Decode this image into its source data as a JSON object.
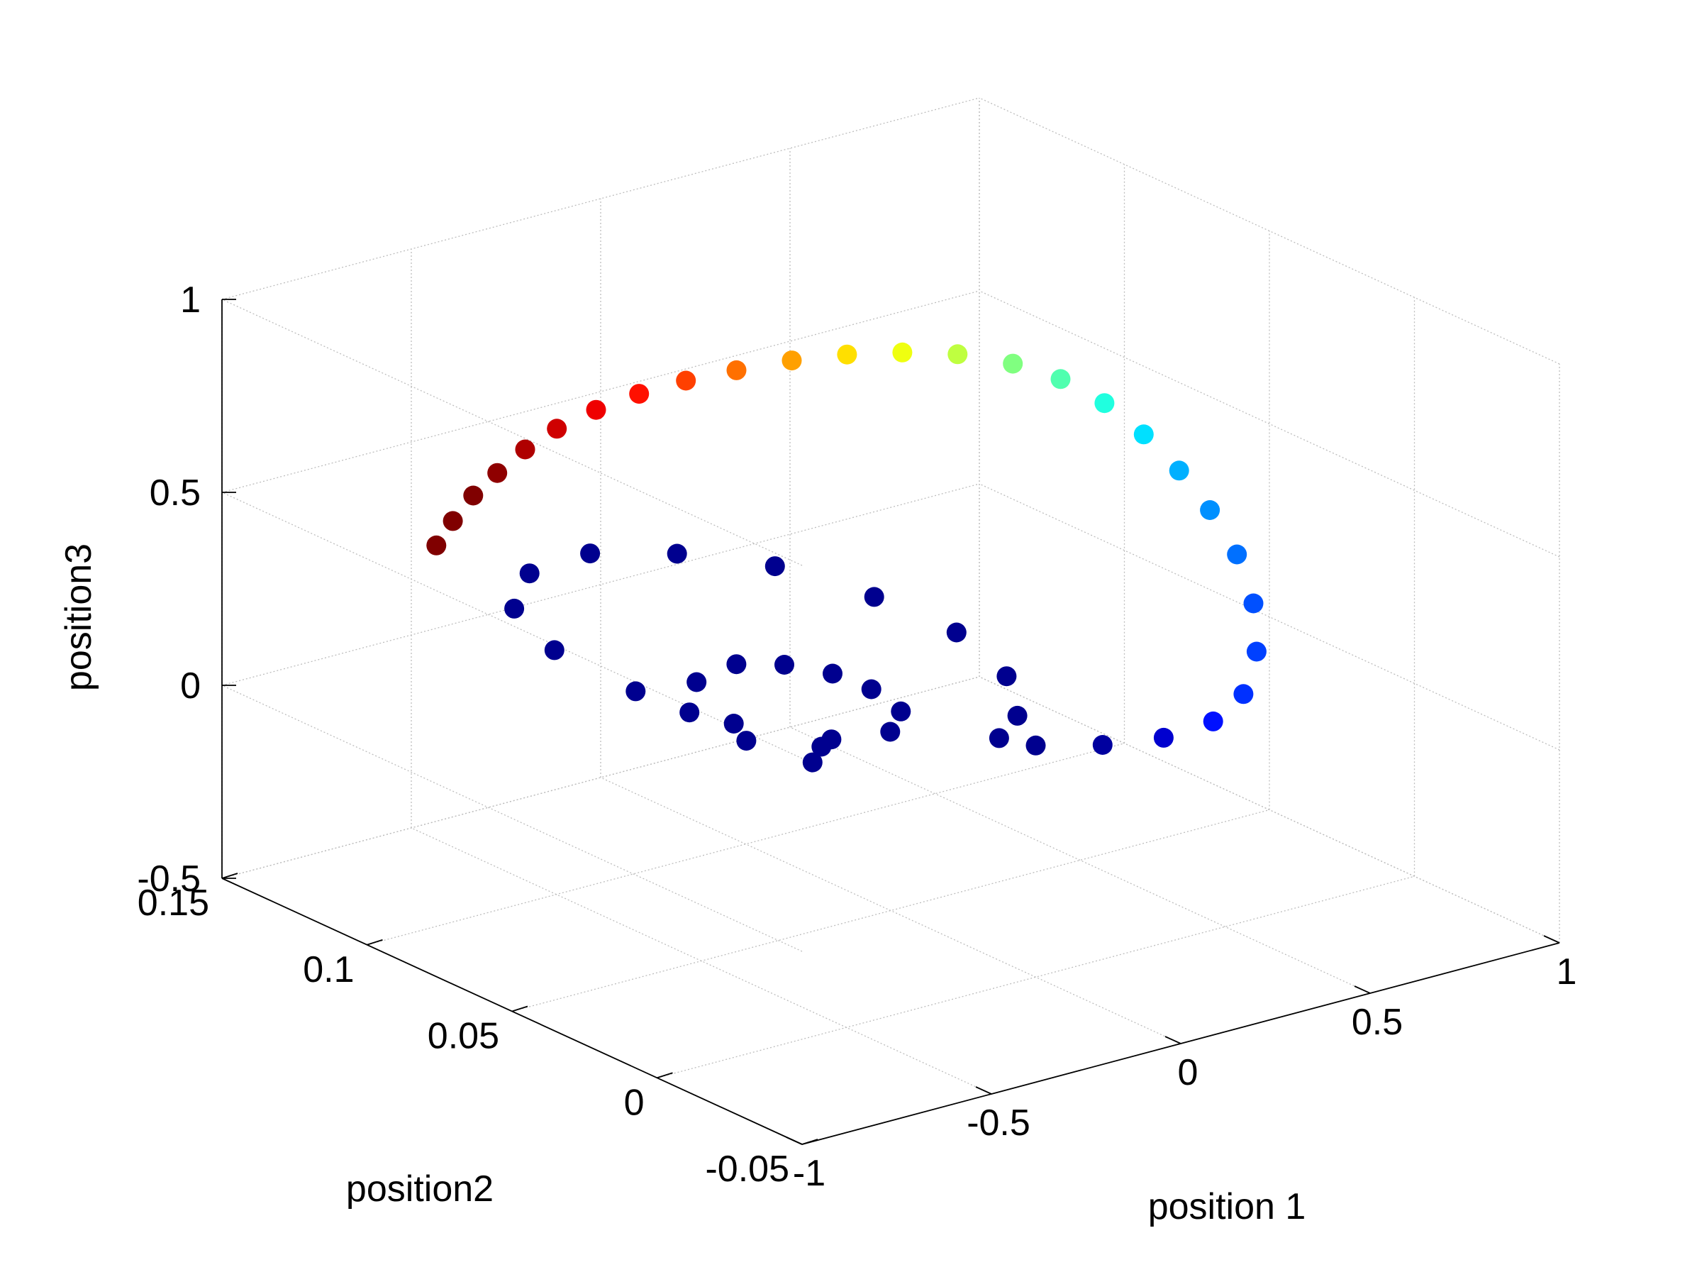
{
  "chart_data": {
    "type": "scatter",
    "projection": "3d",
    "xlabel": "position 1",
    "ylabel": "position2",
    "zlabel": "position3",
    "xlim": [
      -1,
      1
    ],
    "ylim": [
      -0.05,
      0.15
    ],
    "zlim": [
      -0.5,
      1
    ],
    "grid": true,
    "colormap": "jet",
    "x_ticks": [
      "-1",
      "-0.5",
      "0",
      "0.5",
      "1"
    ],
    "y_ticks": [
      "-0.05",
      "0",
      "0.05",
      "0.1",
      "0.15"
    ],
    "z_ticks": [
      "-0.5",
      "0",
      "0.5",
      "1"
    ],
    "points": [
      {
        "x": 0.2,
        "y": 0.1,
        "z": -0.3,
        "color": "#00008f"
      },
      {
        "x": 0.1,
        "y": 0.09,
        "z": -0.28,
        "color": "#00008f"
      },
      {
        "x": 0.04,
        "y": 0.105,
        "z": -0.26,
        "color": "#00008f"
      },
      {
        "x": 0.02,
        "y": 0.122,
        "z": -0.24,
        "color": "#00008f"
      },
      {
        "x": 0.1,
        "y": 0.13,
        "z": -0.21,
        "color": "#00008f"
      },
      {
        "x": 0.19,
        "y": 0.128,
        "z": -0.18,
        "color": "#00008f"
      },
      {
        "x": 0.24,
        "y": 0.118,
        "z": -0.16,
        "color": "#00008f"
      },
      {
        "x": 0.26,
        "y": 0.104,
        "z": -0.14,
        "color": "#00008f"
      },
      {
        "x": 0.24,
        "y": 0.088,
        "z": -0.12,
        "color": "#00008f"
      },
      {
        "x": 0.18,
        "y": 0.07,
        "z": -0.1,
        "color": "#00008f"
      },
      {
        "x": 0.06,
        "y": 0.058,
        "z": -0.08,
        "color": "#00008f"
      },
      {
        "x": -0.08,
        "y": 0.06,
        "z": -0.07,
        "color": "#00008f"
      },
      {
        "x": -0.2,
        "y": 0.078,
        "z": -0.06,
        "color": "#00008f"
      },
      {
        "x": -0.26,
        "y": 0.104,
        "z": -0.05,
        "color": "#00008f"
      },
      {
        "x": -0.26,
        "y": 0.132,
        "z": -0.04,
        "color": "#00008f"
      },
      {
        "x": -0.19,
        "y": 0.155,
        "z": -0.03,
        "color": "#00008f"
      },
      {
        "x": -0.05,
        "y": 0.168,
        "z": -0.02,
        "color": "#00008f"
      },
      {
        "x": 0.11,
        "y": 0.168,
        "z": -0.01,
        "color": "#00008f"
      },
      {
        "x": 0.24,
        "y": 0.155,
        "z": 0.0,
        "color": "#00008f"
      },
      {
        "x": 0.33,
        "y": 0.133,
        "z": 0.02,
        "color": "#00008f"
      },
      {
        "x": 0.37,
        "y": 0.104,
        "z": 0.03,
        "color": "#00008f"
      },
      {
        "x": 0.35,
        "y": 0.073,
        "z": 0.05,
        "color": "#00008f"
      },
      {
        "x": 0.26,
        "y": 0.044,
        "z": 0.06,
        "color": "#00008f"
      },
      {
        "x": 0.12,
        "y": 0.022,
        "z": 0.07,
        "color": "#00008f"
      },
      {
        "x": -0.02,
        "y": 0.01,
        "z": 0.09,
        "color": "#00008f"
      },
      {
        "x": 0.0,
        "y": 0.0,
        "z": 0.1,
        "color": "#00008f"
      },
      {
        "x": 0.1,
        "y": -0.01,
        "z": 0.11,
        "color": "#00009f"
      },
      {
        "x": 0.2,
        "y": -0.018,
        "z": 0.13,
        "color": "#0000cf"
      },
      {
        "x": 0.3,
        "y": -0.022,
        "z": 0.16,
        "color": "#0010ff"
      },
      {
        "x": 0.38,
        "y": -0.022,
        "z": 0.21,
        "color": "#0030ff"
      },
      {
        "x": 0.43,
        "y": -0.02,
        "z": 0.3,
        "color": "#0040ff"
      },
      {
        "x": 0.46,
        "y": -0.015,
        "z": 0.4,
        "color": "#0050ff"
      },
      {
        "x": 0.47,
        "y": -0.008,
        "z": 0.5,
        "color": "#0070ff"
      },
      {
        "x": 0.46,
        "y": 0.0,
        "z": 0.59,
        "color": "#0090ff"
      },
      {
        "x": 0.44,
        "y": 0.008,
        "z": 0.67,
        "color": "#00b0ff"
      },
      {
        "x": 0.4,
        "y": 0.015,
        "z": 0.75,
        "color": "#00e0ff"
      },
      {
        "x": 0.35,
        "y": 0.022,
        "z": 0.82,
        "color": "#20ffdf"
      },
      {
        "x": 0.28,
        "y": 0.028,
        "z": 0.88,
        "color": "#50ffaf"
      },
      {
        "x": 0.2,
        "y": 0.034,
        "z": 0.92,
        "color": "#80ff80"
      },
      {
        "x": 0.1,
        "y": 0.04,
        "z": 0.95,
        "color": "#bfff40"
      },
      {
        "x": 0.0,
        "y": 0.046,
        "z": 0.96,
        "color": "#efff10"
      },
      {
        "x": -0.1,
        "y": 0.052,
        "z": 0.96,
        "color": "#ffdf00"
      },
      {
        "x": -0.2,
        "y": 0.058,
        "z": 0.95,
        "color": "#ffa000"
      },
      {
        "x": -0.3,
        "y": 0.064,
        "z": 0.93,
        "color": "#ff7000"
      },
      {
        "x": -0.38,
        "y": 0.071,
        "z": 0.9,
        "color": "#ff4000"
      },
      {
        "x": -0.45,
        "y": 0.078,
        "z": 0.86,
        "color": "#ff1000"
      },
      {
        "x": -0.51,
        "y": 0.085,
        "z": 0.81,
        "color": "#ef0000"
      },
      {
        "x": -0.56,
        "y": 0.092,
        "z": 0.75,
        "color": "#cf0000"
      },
      {
        "x": -0.59,
        "y": 0.099,
        "z": 0.68,
        "color": "#af0000"
      },
      {
        "x": -0.61,
        "y": 0.106,
        "z": 0.6,
        "color": "#8f0000"
      },
      {
        "x": -0.62,
        "y": 0.113,
        "z": 0.52,
        "color": "#800000"
      },
      {
        "x": -0.62,
        "y": 0.12,
        "z": 0.43,
        "color": "#800000"
      },
      {
        "x": -0.61,
        "y": 0.127,
        "z": 0.34,
        "color": "#800000"
      }
    ]
  }
}
